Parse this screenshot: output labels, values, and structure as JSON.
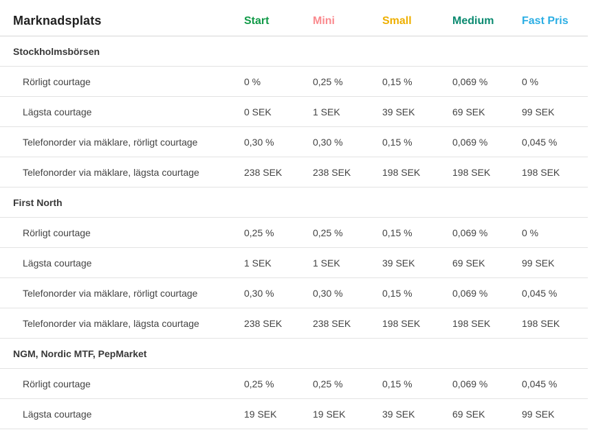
{
  "page": {
    "background": "#ffffff",
    "divider_color": "#e2e2e2",
    "header_divider_color": "#d6d6d6"
  },
  "table": {
    "title": "Marknadsplats",
    "columns": [
      {
        "label": "Start",
        "color": "#119a48"
      },
      {
        "label": "Mini",
        "color": "#fa8a8e"
      },
      {
        "label": "Small",
        "color": "#eeaf00"
      },
      {
        "label": "Medium",
        "color": "#0a8a70"
      },
      {
        "label": "Fast Pris",
        "color": "#2baee4"
      }
    ],
    "sections": [
      {
        "title": "Stockholmsbörsen",
        "rows": [
          {
            "label": "Rörligt courtage",
            "values": [
              "0 %",
              "0,25 %",
              "0,15 %",
              "0,069 %",
              "0 %"
            ]
          },
          {
            "label": "Lägsta courtage",
            "values": [
              "0 SEK",
              "1 SEK",
              "39 SEK",
              "69 SEK",
              "99 SEK"
            ]
          },
          {
            "label": "Telefonorder via mäklare, rörligt courtage",
            "values": [
              "0,30 %",
              "0,30 %",
              "0,15 %",
              "0,069 %",
              "0,045 %"
            ]
          },
          {
            "label": "Telefonorder via mäklare, lägsta courtage",
            "values": [
              "238 SEK",
              "238 SEK",
              "198 SEK",
              "198 SEK",
              "198 SEK"
            ]
          }
        ]
      },
      {
        "title": "First North",
        "rows": [
          {
            "label": "Rörligt courtage",
            "values": [
              "0,25 %",
              "0,25 %",
              "0,15 %",
              "0,069 %",
              "0 %"
            ]
          },
          {
            "label": "Lägsta courtage",
            "values": [
              "1 SEK",
              "1 SEK",
              "39 SEK",
              "69 SEK",
              "99 SEK"
            ]
          },
          {
            "label": "Telefonorder via mäklare, rörligt courtage",
            "values": [
              "0,30 %",
              "0,30 %",
              "0,15 %",
              "0,069 %",
              "0,045 %"
            ]
          },
          {
            "label": "Telefonorder via mäklare, lägsta courtage",
            "values": [
              "238 SEK",
              "238 SEK",
              "198 SEK",
              "198 SEK",
              "198 SEK"
            ]
          }
        ]
      },
      {
        "title": "NGM, Nordic MTF, PepMarket",
        "rows": [
          {
            "label": "Rörligt courtage",
            "values": [
              "0,25 %",
              "0,25 %",
              "0,15 %",
              "0,069 %",
              "0,045 %"
            ]
          },
          {
            "label": "Lägsta courtage",
            "values": [
              "19 SEK",
              "19 SEK",
              "39 SEK",
              "69 SEK",
              "99 SEK"
            ]
          }
        ]
      }
    ]
  }
}
